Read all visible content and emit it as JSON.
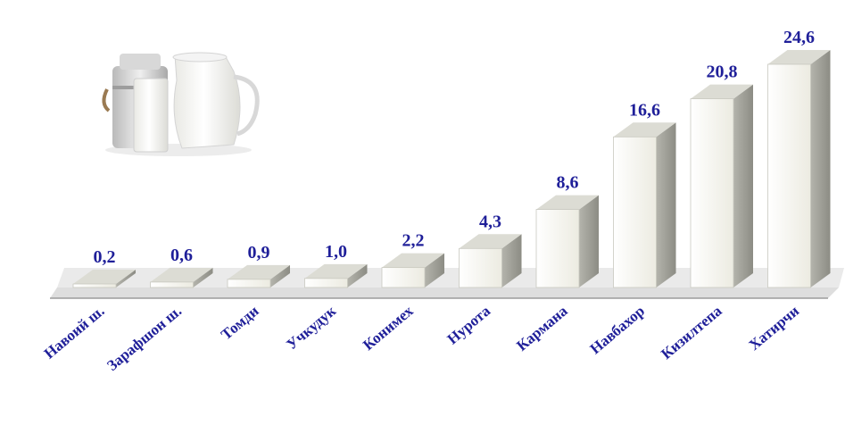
{
  "chart_data": {
    "type": "bar",
    "categories": [
      "Навоий ш.",
      "Зарафшон ш.",
      "Томди",
      "Учкудук",
      "Конимех",
      "Нурота",
      "Кармана",
      "Навбахор",
      "Кизилтепа",
      "Хатирчи"
    ],
    "values": [
      0.2,
      0.6,
      0.9,
      1.0,
      2.2,
      4.3,
      8.6,
      16.6,
      20.8,
      24.6
    ],
    "value_labels": [
      "0,2",
      "0,6",
      "0,9",
      "1,0",
      "2,2",
      "4,3",
      "8,6",
      "16,6",
      "20,8",
      "24,6"
    ],
    "title": "",
    "xlabel": "",
    "ylabel": "",
    "ylim": [
      0,
      24.6
    ],
    "grid": false,
    "legend": "none",
    "style": "3d-columns"
  },
  "decoration": {
    "image": "milk-jug-and-can-illustration"
  },
  "colors": {
    "label": "#1f1f99",
    "bar_front": "#f6f4ea",
    "bar_top": "#dcdcd4",
    "bar_side": "#9c9c94",
    "floor": "#d9d9d9",
    "axis": "#8a8a8a"
  }
}
